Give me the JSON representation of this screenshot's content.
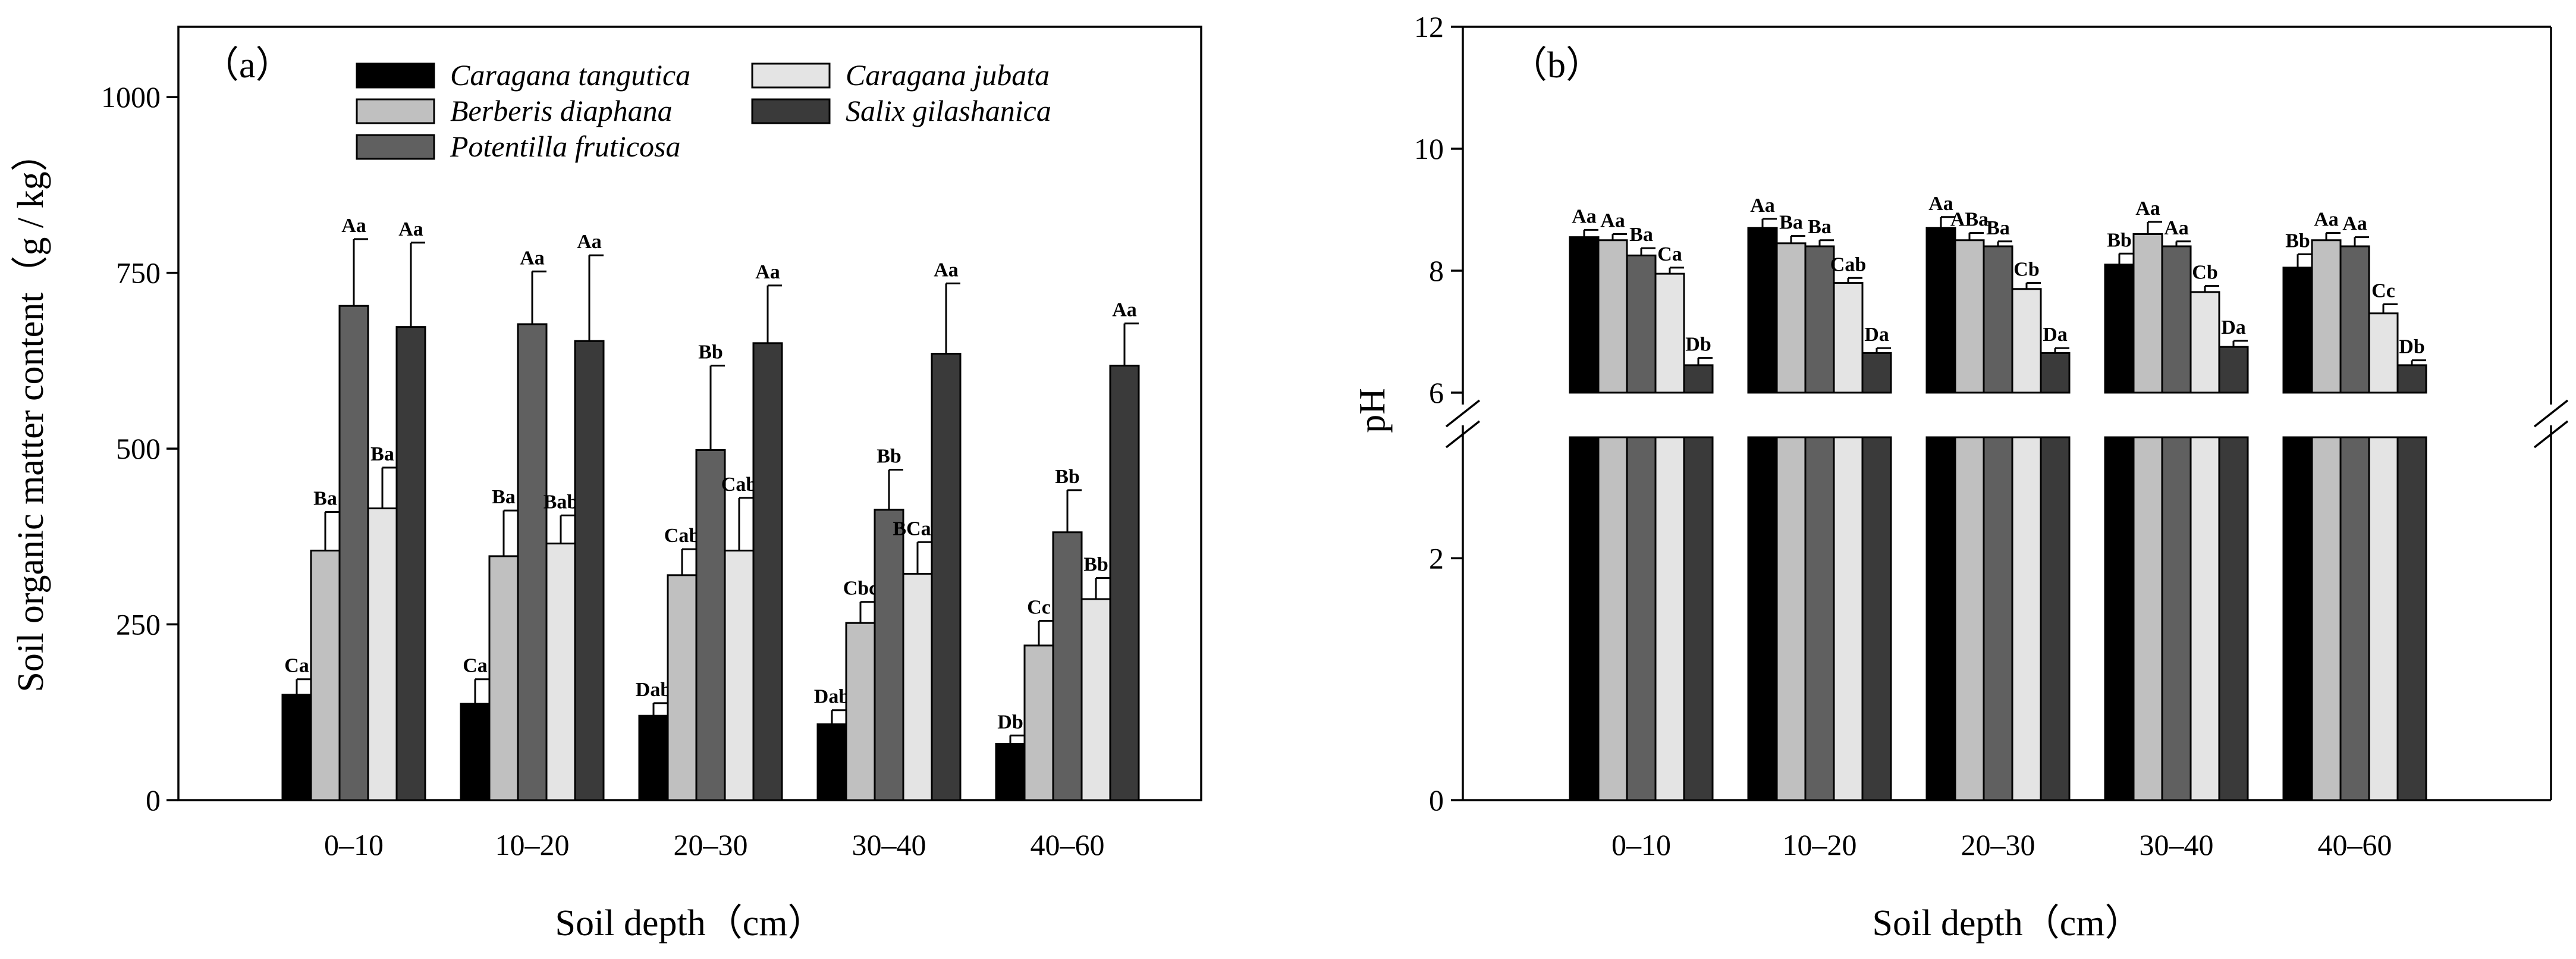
{
  "chart_data": [
    {
      "type": "bar",
      "panel_label": "（a）",
      "xlabel": "Soil depth（cm）",
      "ylabel": "Soil organic matter content（g / kg）",
      "categories": [
        "0–10",
        "10–20",
        "20–30",
        "30–40",
        "40–60"
      ],
      "ylim": [
        0,
        1100
      ],
      "yticks": [
        0,
        250,
        500,
        750,
        1000
      ],
      "legend_position": "top-left",
      "series": [
        {
          "name": "Caragana tangutica",
          "color": "#000000",
          "values": [
            150,
            137,
            120,
            108,
            80
          ],
          "errors": [
            22,
            35,
            18,
            20,
            12
          ],
          "labels": [
            "Ca",
            "Ca",
            "Dab",
            "Dab",
            "Db"
          ]
        },
        {
          "name": "Berberis diaphana",
          "color": "#c0c0c0",
          "values": [
            355,
            347,
            320,
            252,
            220
          ],
          "errors": [
            55,
            65,
            37,
            30,
            35
          ],
          "labels": [
            "Ba",
            "Ba",
            "Cab",
            "Cbc",
            "Cc"
          ]
        },
        {
          "name": "Potentilla fruticosa",
          "color": "#606060",
          "values": [
            703,
            677,
            498,
            413,
            381
          ],
          "errors": [
            95,
            75,
            120,
            57,
            60
          ],
          "labels": [
            "Aa",
            "Aa",
            "Bb",
            "Bb",
            "Bb"
          ]
        },
        {
          "name": "Caragana jubata",
          "color": "#e4e4e4",
          "values": [
            415,
            365,
            355,
            322,
            286
          ],
          "errors": [
            58,
            40,
            75,
            45,
            30
          ],
          "labels": [
            "Ba",
            "Bab",
            "Cab",
            "BCab",
            "Bb"
          ]
        },
        {
          "name": "Salix gilashanica",
          "color": "#3a3a3a",
          "values": [
            673,
            653,
            650,
            635,
            618
          ],
          "errors": [
            120,
            122,
            82,
            100,
            60
          ],
          "labels": [
            "Aa",
            "Aa",
            "Aa",
            "Aa",
            "Aa"
          ]
        }
      ]
    },
    {
      "type": "bar",
      "panel_label": "（b）",
      "xlabel": "Soil depth（cm）",
      "ylabel": "pH",
      "categories": [
        "0–10",
        "10–20",
        "20–30",
        "30–40",
        "40–60"
      ],
      "ylim": [
        0,
        12
      ],
      "y_axis_break": [
        3.0,
        6.0
      ],
      "yticks": [
        0,
        2,
        6,
        8,
        10,
        12
      ],
      "series": [
        {
          "name": "Caragana tangutica",
          "color": "#000000",
          "values": [
            8.55,
            8.7,
            8.7,
            8.1,
            8.05
          ],
          "errors": [
            0.12,
            0.15,
            0.18,
            0.18,
            0.22
          ],
          "labels": [
            "Aa",
            "Aa",
            "Aa",
            "Bb",
            "Bb"
          ]
        },
        {
          "name": "Berberis diaphana",
          "color": "#c0c0c0",
          "values": [
            8.5,
            8.45,
            8.5,
            8.6,
            8.5
          ],
          "errors": [
            0.1,
            0.12,
            0.12,
            0.2,
            0.12
          ],
          "labels": [
            "Aa",
            "Ba",
            "ABa",
            "Aa",
            "Aa"
          ]
        },
        {
          "name": "Potentilla fruticosa",
          "color": "#606060",
          "values": [
            8.25,
            8.4,
            8.4,
            8.4,
            8.4
          ],
          "errors": [
            0.12,
            0.1,
            0.08,
            0.08,
            0.15
          ],
          "labels": [
            "Ba",
            "Ba",
            "Ba",
            "Aa",
            "Aa"
          ]
        },
        {
          "name": "Caragana jubata",
          "color": "#e4e4e4",
          "values": [
            7.95,
            7.8,
            7.7,
            7.65,
            7.3
          ],
          "errors": [
            0.1,
            0.08,
            0.1,
            0.1,
            0.15
          ],
          "labels": [
            "Ca",
            "Cab",
            "Cb",
            "Cb",
            "Cc"
          ]
        },
        {
          "name": "Salix gilashanica",
          "color": "#3a3a3a",
          "values": [
            6.45,
            6.65,
            6.65,
            6.75,
            6.45
          ],
          "errors": [
            0.12,
            0.08,
            0.08,
            0.1,
            0.08
          ],
          "labels": [
            "Db",
            "Da",
            "Da",
            "Da",
            "Db"
          ]
        }
      ]
    }
  ]
}
